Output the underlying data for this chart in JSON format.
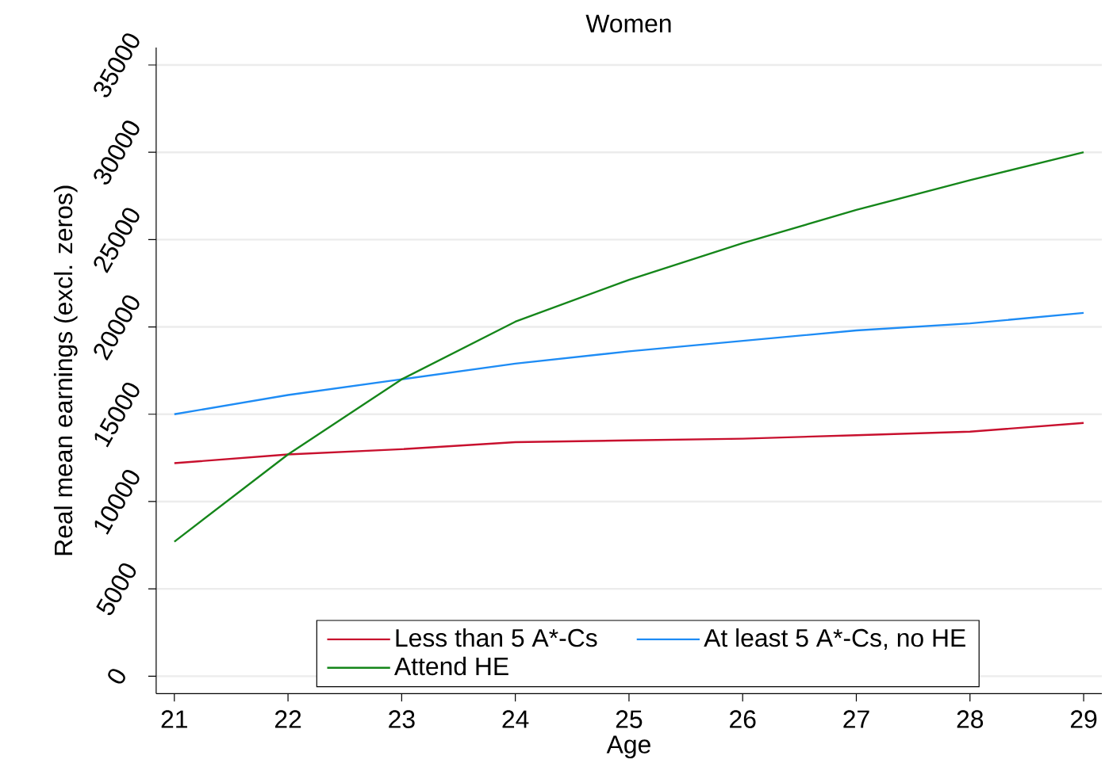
{
  "chart_data": {
    "type": "line",
    "title": "Women",
    "xlabel": "Age",
    "ylabel": "Real mean earnings (excl. zeros)",
    "x": [
      21,
      22,
      23,
      24,
      25,
      26,
      27,
      28,
      29
    ],
    "series": [
      {
        "name": "Less than 5 A*-Cs",
        "color": "#c8102e",
        "values": [
          12200,
          12700,
          13000,
          13400,
          13500,
          13600,
          13800,
          14000,
          14500
        ]
      },
      {
        "name": "At least 5 A*-Cs, no HE",
        "color": "#1e8cf5",
        "values": [
          15000,
          16100,
          17000,
          17900,
          18600,
          19200,
          19800,
          20200,
          20800
        ]
      },
      {
        "name": "Attend HE",
        "color": "#15861a",
        "values": [
          7700,
          12700,
          17000,
          20300,
          22700,
          24800,
          26700,
          28400,
          30000
        ]
      }
    ],
    "xlim": [
      20.84,
      29.16
    ],
    "ylim": [
      -1000,
      36000
    ],
    "xticks": [
      21,
      22,
      23,
      24,
      25,
      26,
      27,
      28,
      29
    ],
    "yticks": [
      0,
      5000,
      10000,
      15000,
      20000,
      25000,
      30000,
      35000
    ],
    "grid": "y",
    "legend": "bottom",
    "marker": "none",
    "line_style": "solid"
  }
}
